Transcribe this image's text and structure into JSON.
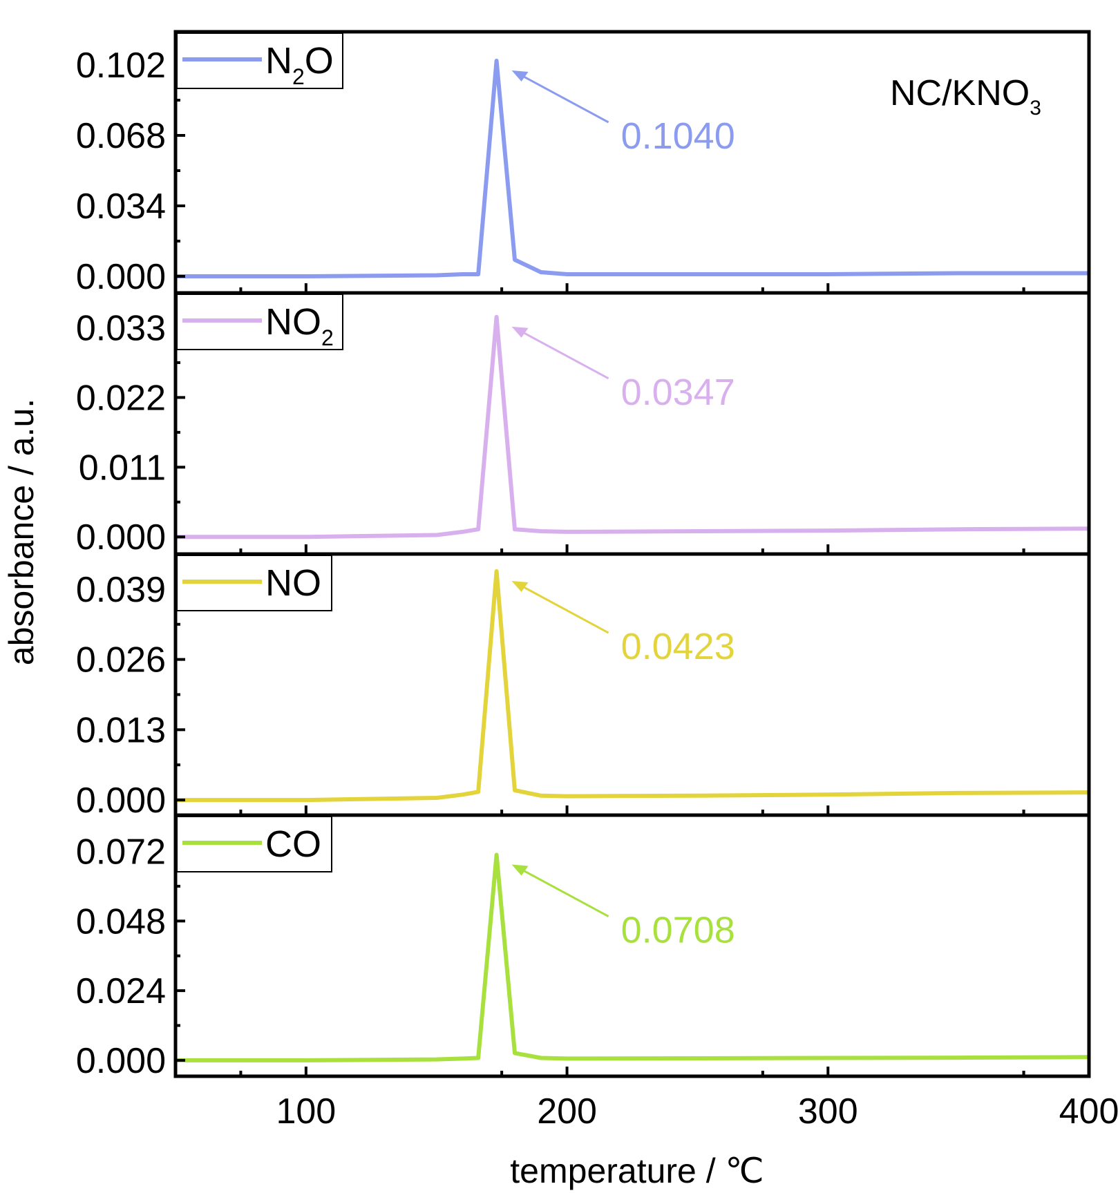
{
  "chart_data": {
    "type": "line",
    "title": "NC/KNO₃",
    "title_main": "NC/KNO",
    "title_sub": "3",
    "xlabel": "temperature / ℃",
    "ylabel": "absorbance / a.u.",
    "xlim": [
      50,
      400
    ],
    "xticks": [
      100,
      200,
      300,
      400
    ],
    "xtick_labels": [
      "100",
      "200",
      "300",
      "400"
    ],
    "x": [
      50,
      100,
      150,
      160,
      166,
      173,
      180,
      190,
      200,
      250,
      300,
      350,
      400
    ],
    "panels": [
      {
        "series_name": "N₂O",
        "legend_main": "N",
        "legend_sub": "2",
        "legend_tail": "O",
        "color": "#8b9cf0",
        "ylim": [
          -0.008,
          0.118
        ],
        "yticks": [
          0.0,
          0.034,
          0.068,
          0.102
        ],
        "ytick_labels": [
          "0.000",
          "0.034",
          "0.068",
          "0.102"
        ],
        "values": [
          0.0,
          0.0,
          0.0005,
          0.001,
          0.001,
          0.104,
          0.008,
          0.002,
          0.001,
          0.001,
          0.001,
          0.0015,
          0.0015
        ],
        "peak_x": 173,
        "peak_label": "0.1040"
      },
      {
        "series_name": "NO₂",
        "legend_main": "NO",
        "legend_sub": "2",
        "legend_tail": "",
        "color": "#d9b0ee",
        "ylim": [
          -0.0027,
          0.0385
        ],
        "yticks": [
          0.0,
          0.011,
          0.022,
          0.033
        ],
        "ytick_labels": [
          "0.000",
          "0.011",
          "0.022",
          "0.033"
        ],
        "values": [
          0.0,
          0.0,
          0.0003,
          0.0008,
          0.0012,
          0.0347,
          0.0012,
          0.0009,
          0.0008,
          0.0009,
          0.001,
          0.0012,
          0.0013
        ],
        "peak_x": 173,
        "peak_label": "0.0347"
      },
      {
        "series_name": "NO",
        "legend_main": "NO",
        "legend_sub": "",
        "legend_tail": "",
        "color": "#e2d43a",
        "ylim": [
          -0.0028,
          0.0455
        ],
        "yticks": [
          0.0,
          0.013,
          0.026,
          0.039
        ],
        "ytick_labels": [
          "0.000",
          "0.013",
          "0.026",
          "0.039"
        ],
        "values": [
          0.0,
          0.0,
          0.0004,
          0.001,
          0.0015,
          0.0423,
          0.0018,
          0.0008,
          0.0007,
          0.0008,
          0.001,
          0.0013,
          0.0014
        ],
        "peak_x": 173,
        "peak_label": "0.0423"
      },
      {
        "series_name": "CO",
        "legend_main": "CO",
        "legend_sub": "",
        "legend_tail": "",
        "color": "#a8e03e",
        "ylim": [
          -0.0055,
          0.0845
        ],
        "yticks": [
          0.0,
          0.024,
          0.048,
          0.072
        ],
        "ytick_labels": [
          "0.000",
          "0.024",
          "0.048",
          "0.072"
        ],
        "values": [
          0.0,
          0.0,
          0.0003,
          0.0006,
          0.0008,
          0.0708,
          0.0025,
          0.0008,
          0.0006,
          0.0007,
          0.0008,
          0.0009,
          0.0011
        ],
        "peak_x": 173,
        "peak_label": "0.0708"
      }
    ]
  }
}
